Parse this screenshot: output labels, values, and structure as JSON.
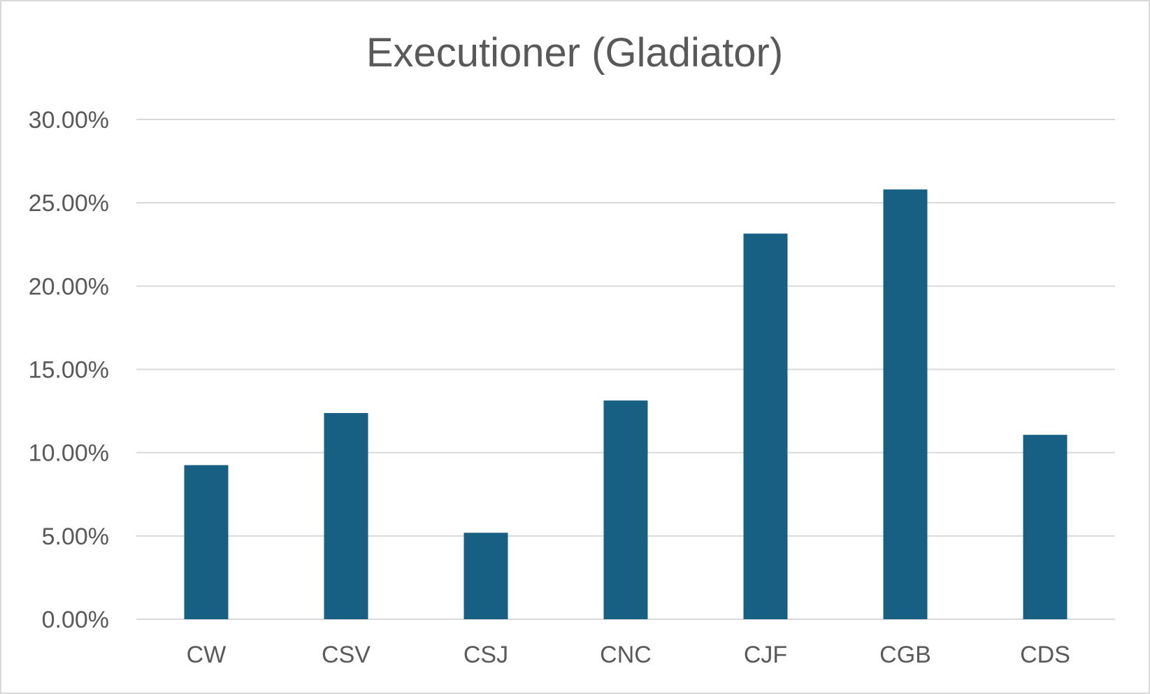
{
  "chart_data": {
    "type": "bar",
    "title": "Executioner (Gladiator)",
    "xlabel": "",
    "ylabel": "",
    "categories": [
      "CW",
      "CSV",
      "CSJ",
      "CNC",
      "CJF",
      "CGB",
      "CDS"
    ],
    "values": [
      9.25,
      12.38,
      5.19,
      13.13,
      23.15,
      25.8,
      11.07
    ],
    "ylim": [
      0,
      30
    ],
    "y_ticks": [
      0,
      5,
      10,
      15,
      20,
      25,
      30
    ],
    "y_tick_labels": [
      "0.00%",
      "5.00%",
      "10.00%",
      "15.00%",
      "20.00%",
      "25.00%",
      "30.00%"
    ],
    "value_format": "percent",
    "grid": true,
    "legend": "none",
    "colors": {
      "bar": "#175f83",
      "grid": "#d9d9d9",
      "text": "#595959",
      "border": "#d9d9d9"
    }
  }
}
